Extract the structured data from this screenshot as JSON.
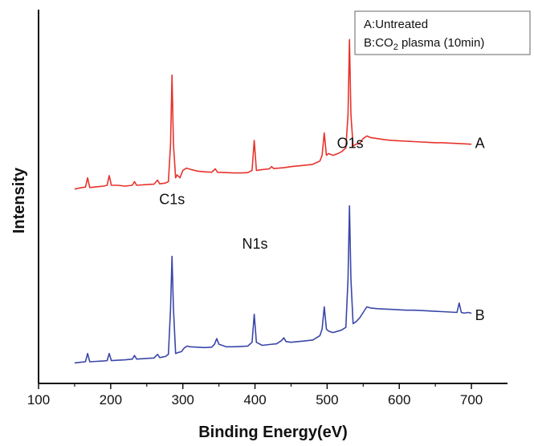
{
  "chart_data": {
    "type": "line",
    "xlabel": "Binding Energy(eV)",
    "ylabel": "Intensity",
    "xlim": [
      100,
      750
    ],
    "xticks": [
      100,
      200,
      300,
      400,
      500,
      600,
      700
    ],
    "ylim": [
      0,
      100
    ],
    "grid": false,
    "legend": {
      "placement": "top-right",
      "entries": [
        {
          "prefix": "A:",
          "text": "Untreated"
        },
        {
          "prefix": "B:",
          "text": "CO",
          "sub": "2",
          "suffix": " plasma (10min)"
        }
      ]
    },
    "annotations": [
      {
        "text": "C1s",
        "x": 285,
        "y": 48
      },
      {
        "text": "N1s",
        "x": 400,
        "y": 36
      },
      {
        "text": "O1s",
        "x": 532,
        "y": 63
      }
    ],
    "series": [
      {
        "name": "A",
        "color": "#e8322b",
        "points": [
          [
            150,
            52
          ],
          [
            160,
            52.4
          ],
          [
            165,
            52.5
          ],
          [
            168,
            55
          ],
          [
            171,
            52.4
          ],
          [
            180,
            52.6
          ],
          [
            190,
            52.8
          ],
          [
            195,
            53
          ],
          [
            198,
            55.6
          ],
          [
            201,
            53
          ],
          [
            210,
            53
          ],
          [
            220,
            52.8
          ],
          [
            230,
            53
          ],
          [
            233,
            54
          ],
          [
            236,
            53
          ],
          [
            250,
            53.2
          ],
          [
            260,
            53.3
          ],
          [
            265,
            54.4
          ],
          [
            268,
            53.4
          ],
          [
            276,
            53.6
          ],
          [
            280,
            54
          ],
          [
            283,
            64
          ],
          [
            285,
            82.5
          ],
          [
            287,
            64
          ],
          [
            290,
            55
          ],
          [
            292,
            55.8
          ],
          [
            296,
            55
          ],
          [
            300,
            57
          ],
          [
            305,
            57.6
          ],
          [
            310,
            57.3
          ],
          [
            320,
            56.8
          ],
          [
            330,
            56.6
          ],
          [
            340,
            56.5
          ],
          [
            345,
            57.4
          ],
          [
            348,
            56.5
          ],
          [
            360,
            56.4
          ],
          [
            370,
            56.3
          ],
          [
            380,
            56.3
          ],
          [
            390,
            56.4
          ],
          [
            396,
            57
          ],
          [
            399,
            65
          ],
          [
            402,
            57
          ],
          [
            410,
            57.2
          ],
          [
            420,
            57.4
          ],
          [
            423,
            58
          ],
          [
            426,
            57.5
          ],
          [
            440,
            57.7
          ],
          [
            450,
            58
          ],
          [
            460,
            58.2
          ],
          [
            470,
            58.4
          ],
          [
            480,
            58.6
          ],
          [
            490,
            59.5
          ],
          [
            493,
            61
          ],
          [
            496,
            67
          ],
          [
            499,
            61
          ],
          [
            502,
            61.5
          ],
          [
            508,
            61
          ],
          [
            515,
            61.5
          ],
          [
            520,
            62
          ],
          [
            526,
            63
          ],
          [
            529,
            72
          ],
          [
            531,
            92
          ],
          [
            533,
            72
          ],
          [
            536,
            63.5
          ],
          [
            540,
            64
          ],
          [
            545,
            64.2
          ],
          [
            550,
            65.5
          ],
          [
            555,
            66.2
          ],
          [
            560,
            65.8
          ],
          [
            570,
            65.5
          ],
          [
            580,
            65.2
          ],
          [
            590,
            65
          ],
          [
            600,
            64.9
          ],
          [
            610,
            64.8
          ],
          [
            620,
            64.7
          ],
          [
            630,
            64.6
          ],
          [
            640,
            64.5
          ],
          [
            650,
            64.4
          ],
          [
            660,
            64.4
          ],
          [
            670,
            64.3
          ],
          [
            680,
            64.2
          ],
          [
            690,
            64.1
          ],
          [
            700,
            64
          ]
        ]
      },
      {
        "name": "B",
        "color": "#3a46a8",
        "points": [
          [
            150,
            5.5
          ],
          [
            160,
            5.7
          ],
          [
            165,
            5.8
          ],
          [
            168,
            8
          ],
          [
            171,
            5.8
          ],
          [
            180,
            5.9
          ],
          [
            190,
            6
          ],
          [
            195,
            6.1
          ],
          [
            198,
            8
          ],
          [
            201,
            6.1
          ],
          [
            210,
            6.2
          ],
          [
            220,
            6.3
          ],
          [
            230,
            6.5
          ],
          [
            233,
            7.5
          ],
          [
            236,
            6.5
          ],
          [
            250,
            6.7
          ],
          [
            260,
            6.8
          ],
          [
            265,
            7.8
          ],
          [
            268,
            6.9
          ],
          [
            276,
            7.2
          ],
          [
            280,
            7.8
          ],
          [
            283,
            20
          ],
          [
            285,
            34
          ],
          [
            287,
            20
          ],
          [
            290,
            8
          ],
          [
            294,
            8.3
          ],
          [
            298,
            8.5
          ],
          [
            302,
            9.5
          ],
          [
            306,
            10
          ],
          [
            310,
            9.8
          ],
          [
            320,
            9.7
          ],
          [
            330,
            9.6
          ],
          [
            340,
            9.7
          ],
          [
            344,
            10.5
          ],
          [
            347,
            12
          ],
          [
            350,
            10.5
          ],
          [
            360,
            9.8
          ],
          [
            370,
            9.8
          ],
          [
            380,
            9.9
          ],
          [
            390,
            10
          ],
          [
            396,
            11
          ],
          [
            399,
            18.5
          ],
          [
            402,
            11
          ],
          [
            410,
            10.2
          ],
          [
            420,
            10.4
          ],
          [
            430,
            10.6
          ],
          [
            437,
            11.5
          ],
          [
            440,
            12.2
          ],
          [
            443,
            11.2
          ],
          [
            450,
            11
          ],
          [
            460,
            11.2
          ],
          [
            470,
            11.4
          ],
          [
            480,
            11.6
          ],
          [
            490,
            12.8
          ],
          [
            493,
            14.5
          ],
          [
            496,
            20.5
          ],
          [
            499,
            14.5
          ],
          [
            502,
            14
          ],
          [
            508,
            13.6
          ],
          [
            515,
            14
          ],
          [
            520,
            14.3
          ],
          [
            526,
            15
          ],
          [
            529,
            28
          ],
          [
            531,
            47.5
          ],
          [
            533,
            28
          ],
          [
            536,
            16
          ],
          [
            540,
            16.5
          ],
          [
            545,
            17.5
          ],
          [
            550,
            19
          ],
          [
            555,
            20.5
          ],
          [
            560,
            20.2
          ],
          [
            570,
            20
          ],
          [
            580,
            19.9
          ],
          [
            590,
            19.8
          ],
          [
            600,
            19.7
          ],
          [
            610,
            19.6
          ],
          [
            620,
            19.6
          ],
          [
            630,
            19.5
          ],
          [
            640,
            19.4
          ],
          [
            650,
            19.3
          ],
          [
            660,
            19.2
          ],
          [
            670,
            19.1
          ],
          [
            680,
            19
          ],
          [
            683,
            21.5
          ],
          [
            686,
            19
          ],
          [
            690,
            18.8
          ],
          [
            695,
            19
          ],
          [
            700,
            18.8
          ]
        ]
      }
    ],
    "series_labels": [
      {
        "text": "A",
        "x": 705,
        "y": 63
      },
      {
        "text": "B",
        "x": 705,
        "y": 17
      }
    ]
  }
}
